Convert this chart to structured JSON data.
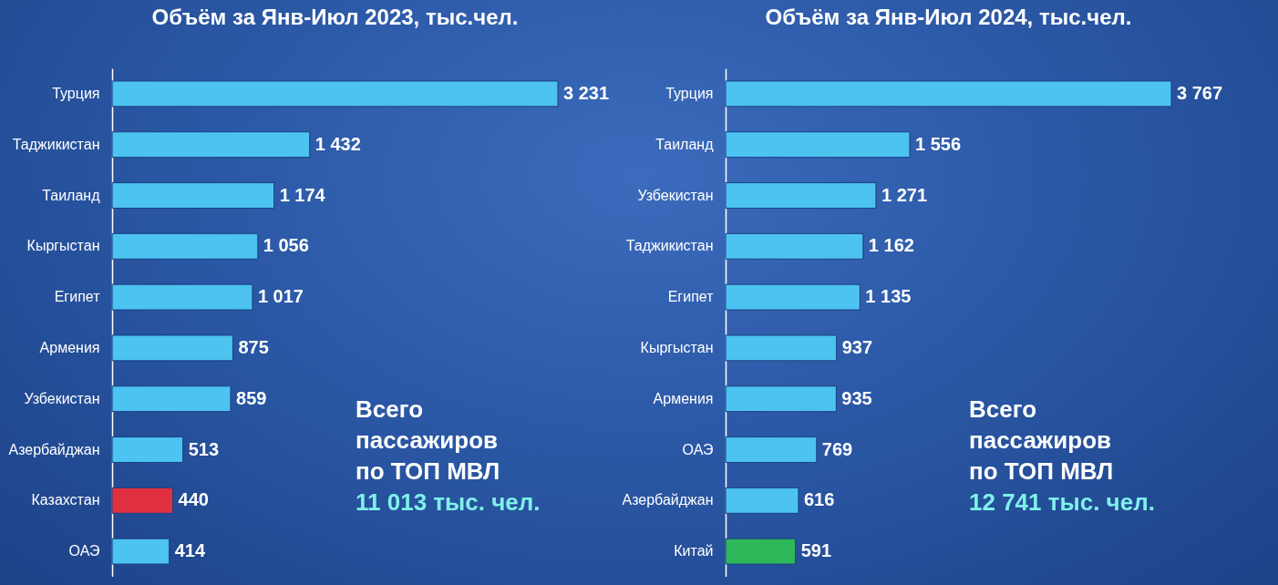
{
  "chart_data": [
    {
      "type": "bar",
      "orientation": "horizontal",
      "title": "Объём за Янв-Июл 2023, тыс.чел.",
      "categories": [
        "Турция",
        "Таджикистан",
        "Таиланд",
        "Кыргыстан",
        "Египет",
        "Армения",
        "Узбекистан",
        "Азербайджан",
        "Казахстан",
        "ОАЭ"
      ],
      "values": [
        3231,
        1432,
        1174,
        1056,
        1017,
        875,
        859,
        513,
        440,
        414
      ],
      "value_labels": [
        "3 231",
        "1 432",
        "1 174",
        "1 056",
        "1 017",
        "875",
        "859",
        "513",
        "440",
        "414"
      ],
      "colors": [
        "#4cc3f0",
        "#4cc3f0",
        "#4cc3f0",
        "#4cc3f0",
        "#4cc3f0",
        "#4cc3f0",
        "#4cc3f0",
        "#4cc3f0",
        "#e0303f",
        "#4cc3f0"
      ],
      "annotations": [
        "Всего пассажиров по ТОП МВЛ",
        "11 013 тыс. чел."
      ]
    },
    {
      "type": "bar",
      "orientation": "horizontal",
      "title": "Объём за Янв-Июл 2024, тыс.чел.",
      "categories": [
        "Турция",
        "Таиланд",
        "Узбекистан",
        "Таджикистан",
        "Египет",
        "Кыргыстан",
        "Армения",
        "ОАЭ",
        "Азербайджан",
        "Китай"
      ],
      "values": [
        3767,
        1556,
        1271,
        1162,
        1135,
        937,
        935,
        769,
        616,
        591
      ],
      "value_labels": [
        "3 767",
        "1 556",
        "1 271",
        "1 162",
        "1 135",
        "937",
        "935",
        "769",
        "616",
        "591"
      ],
      "colors": [
        "#4cc3f0",
        "#4cc3f0",
        "#4cc3f0",
        "#4cc3f0",
        "#4cc3f0",
        "#4cc3f0",
        "#4cc3f0",
        "#4cc3f0",
        "#4cc3f0",
        "#2fb85a"
      ],
      "annotations": [
        "Всего пассажиров по ТОП МВЛ",
        "12 741 тыс. чел."
      ]
    }
  ]
}
